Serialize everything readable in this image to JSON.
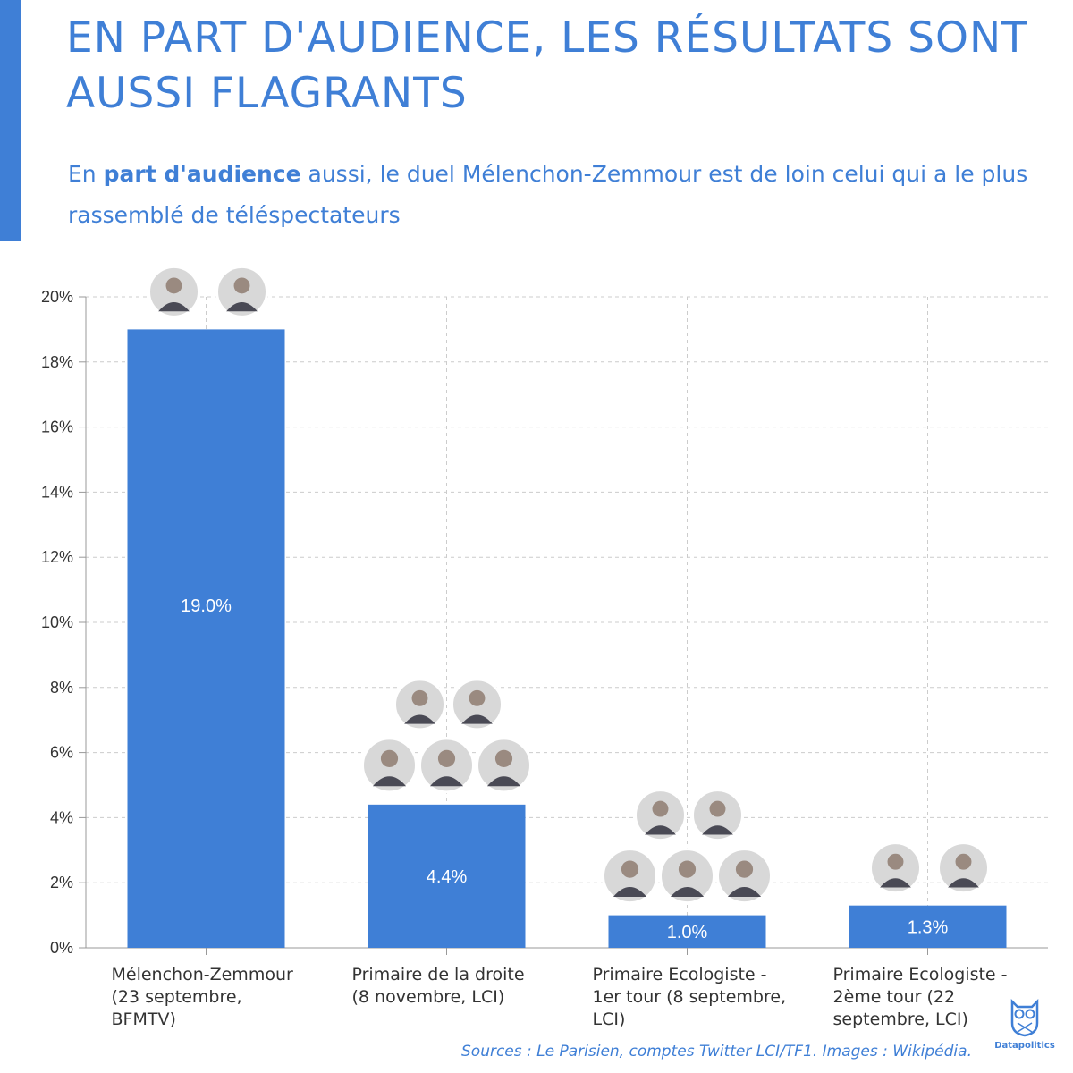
{
  "title": "EN PART D'AUDIENCE, LES RÉSULTATS SONT AUSSI FLAGRANTS",
  "subtitle": {
    "part1": "En ",
    "bold": "part d'audience",
    "part2": " aussi, le duel Mélenchon-Zemmour est de loin celui qui a le plus rassemblé de téléspectateurs"
  },
  "source": "Sources  : Le Parisien, comptes Twitter LCI/TF1. Images : Wikipédia.",
  "logo": {
    "label": "Datapolitics",
    "icon": "owl-icon"
  },
  "colors": {
    "accent": "#3f7fd6",
    "bar": "#3f7fd6",
    "grid": "#cccccc"
  },
  "chart_data": {
    "type": "bar",
    "categories": [
      [
        "Mélenchon-Zemmour",
        "(23 septembre,",
        "BFMTV)"
      ],
      [
        "Primaire de la droite",
        "(8 novembre, LCI)"
      ],
      [
        "Primaire Ecologiste -",
        "1er tour (8 septembre,",
        "LCI)"
      ],
      [
        "Primaire Ecologiste -",
        "2ème tour (22",
        "septembre, LCI)"
      ]
    ],
    "values": [
      19.0,
      4.4,
      1.0,
      1.3
    ],
    "value_labels": [
      "19.0%",
      "4.4%",
      "1.0%",
      "1.3%"
    ],
    "ylim": [
      0,
      20
    ],
    "yticks": [
      0,
      2,
      4,
      6,
      8,
      10,
      12,
      14,
      16,
      18,
      20
    ],
    "ytick_labels": [
      "0%",
      "2%",
      "4%",
      "6%",
      "8%",
      "10%",
      "12%",
      "14%",
      "16%",
      "18%",
      "20%"
    ],
    "grid": true,
    "xlabel": "",
    "ylabel": "",
    "candidate_photos": [
      2,
      5,
      5,
      2
    ]
  }
}
